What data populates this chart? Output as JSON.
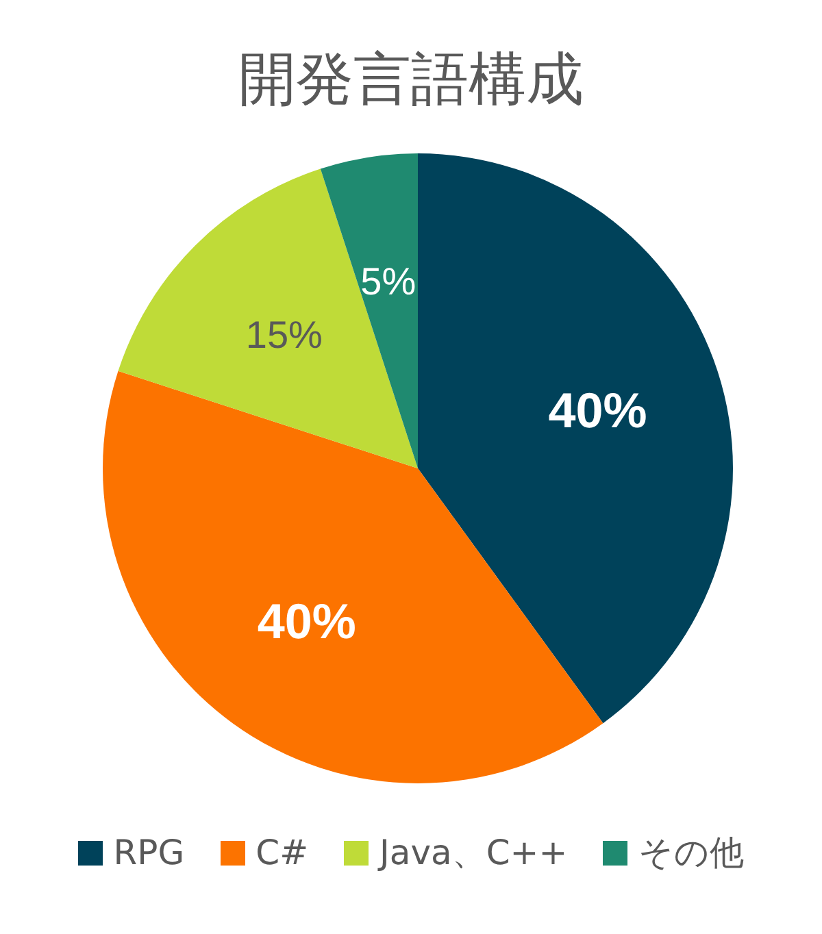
{
  "chart_data": {
    "type": "pie",
    "title": "開発言語構成",
    "categories": [
      "RPG",
      "C#",
      "Java、C++",
      "その他"
    ],
    "values": [
      40,
      40,
      15,
      5
    ],
    "colors": [
      "#00425a",
      "#fc7300",
      "#bfdb38",
      "#1f8a70"
    ],
    "value_labels": [
      "40%",
      "40%",
      "15%",
      "5%"
    ],
    "legend": "bottom"
  }
}
